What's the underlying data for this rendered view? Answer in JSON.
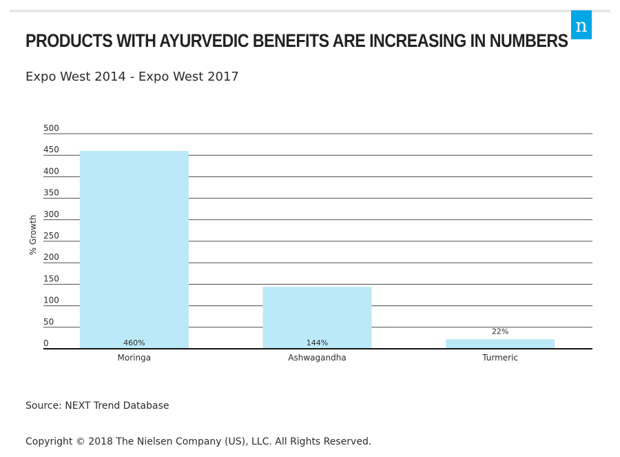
{
  "header": {
    "title": "PRODUCTS WITH AYURVEDIC BENEFITS ARE INCREASING IN NUMBERS",
    "subtitle": "Expo West 2014 - Expo West 2017",
    "logo_letter": "n",
    "logo_color": "#00a6e6"
  },
  "chart_data": {
    "type": "bar",
    "title": "PRODUCTS WITH AYURVEDIC BENEFITS ARE INCREASING IN NUMBERS",
    "subtitle": "Expo West 2014 - Expo West 2017",
    "xlabel": "",
    "ylabel": "% Growth",
    "categories": [
      "Moringa",
      "Ashwagandha",
      "Turmeric"
    ],
    "values": [
      460,
      144,
      22
    ],
    "data_labels": [
      "460%",
      "144%",
      "22%"
    ],
    "ylim": [
      0,
      500
    ],
    "yticks": [
      0,
      50,
      100,
      150,
      200,
      250,
      300,
      350,
      400,
      450,
      500
    ],
    "grid": true,
    "legend": "none",
    "bar_color": "#bce9f7",
    "grid_color": "#4a4a4a"
  },
  "footer": {
    "source": "Source: NEXT Trend Database",
    "copyright": "Copyright © 2018 The Nielsen Company (US), LLC. All Rights Reserved."
  }
}
